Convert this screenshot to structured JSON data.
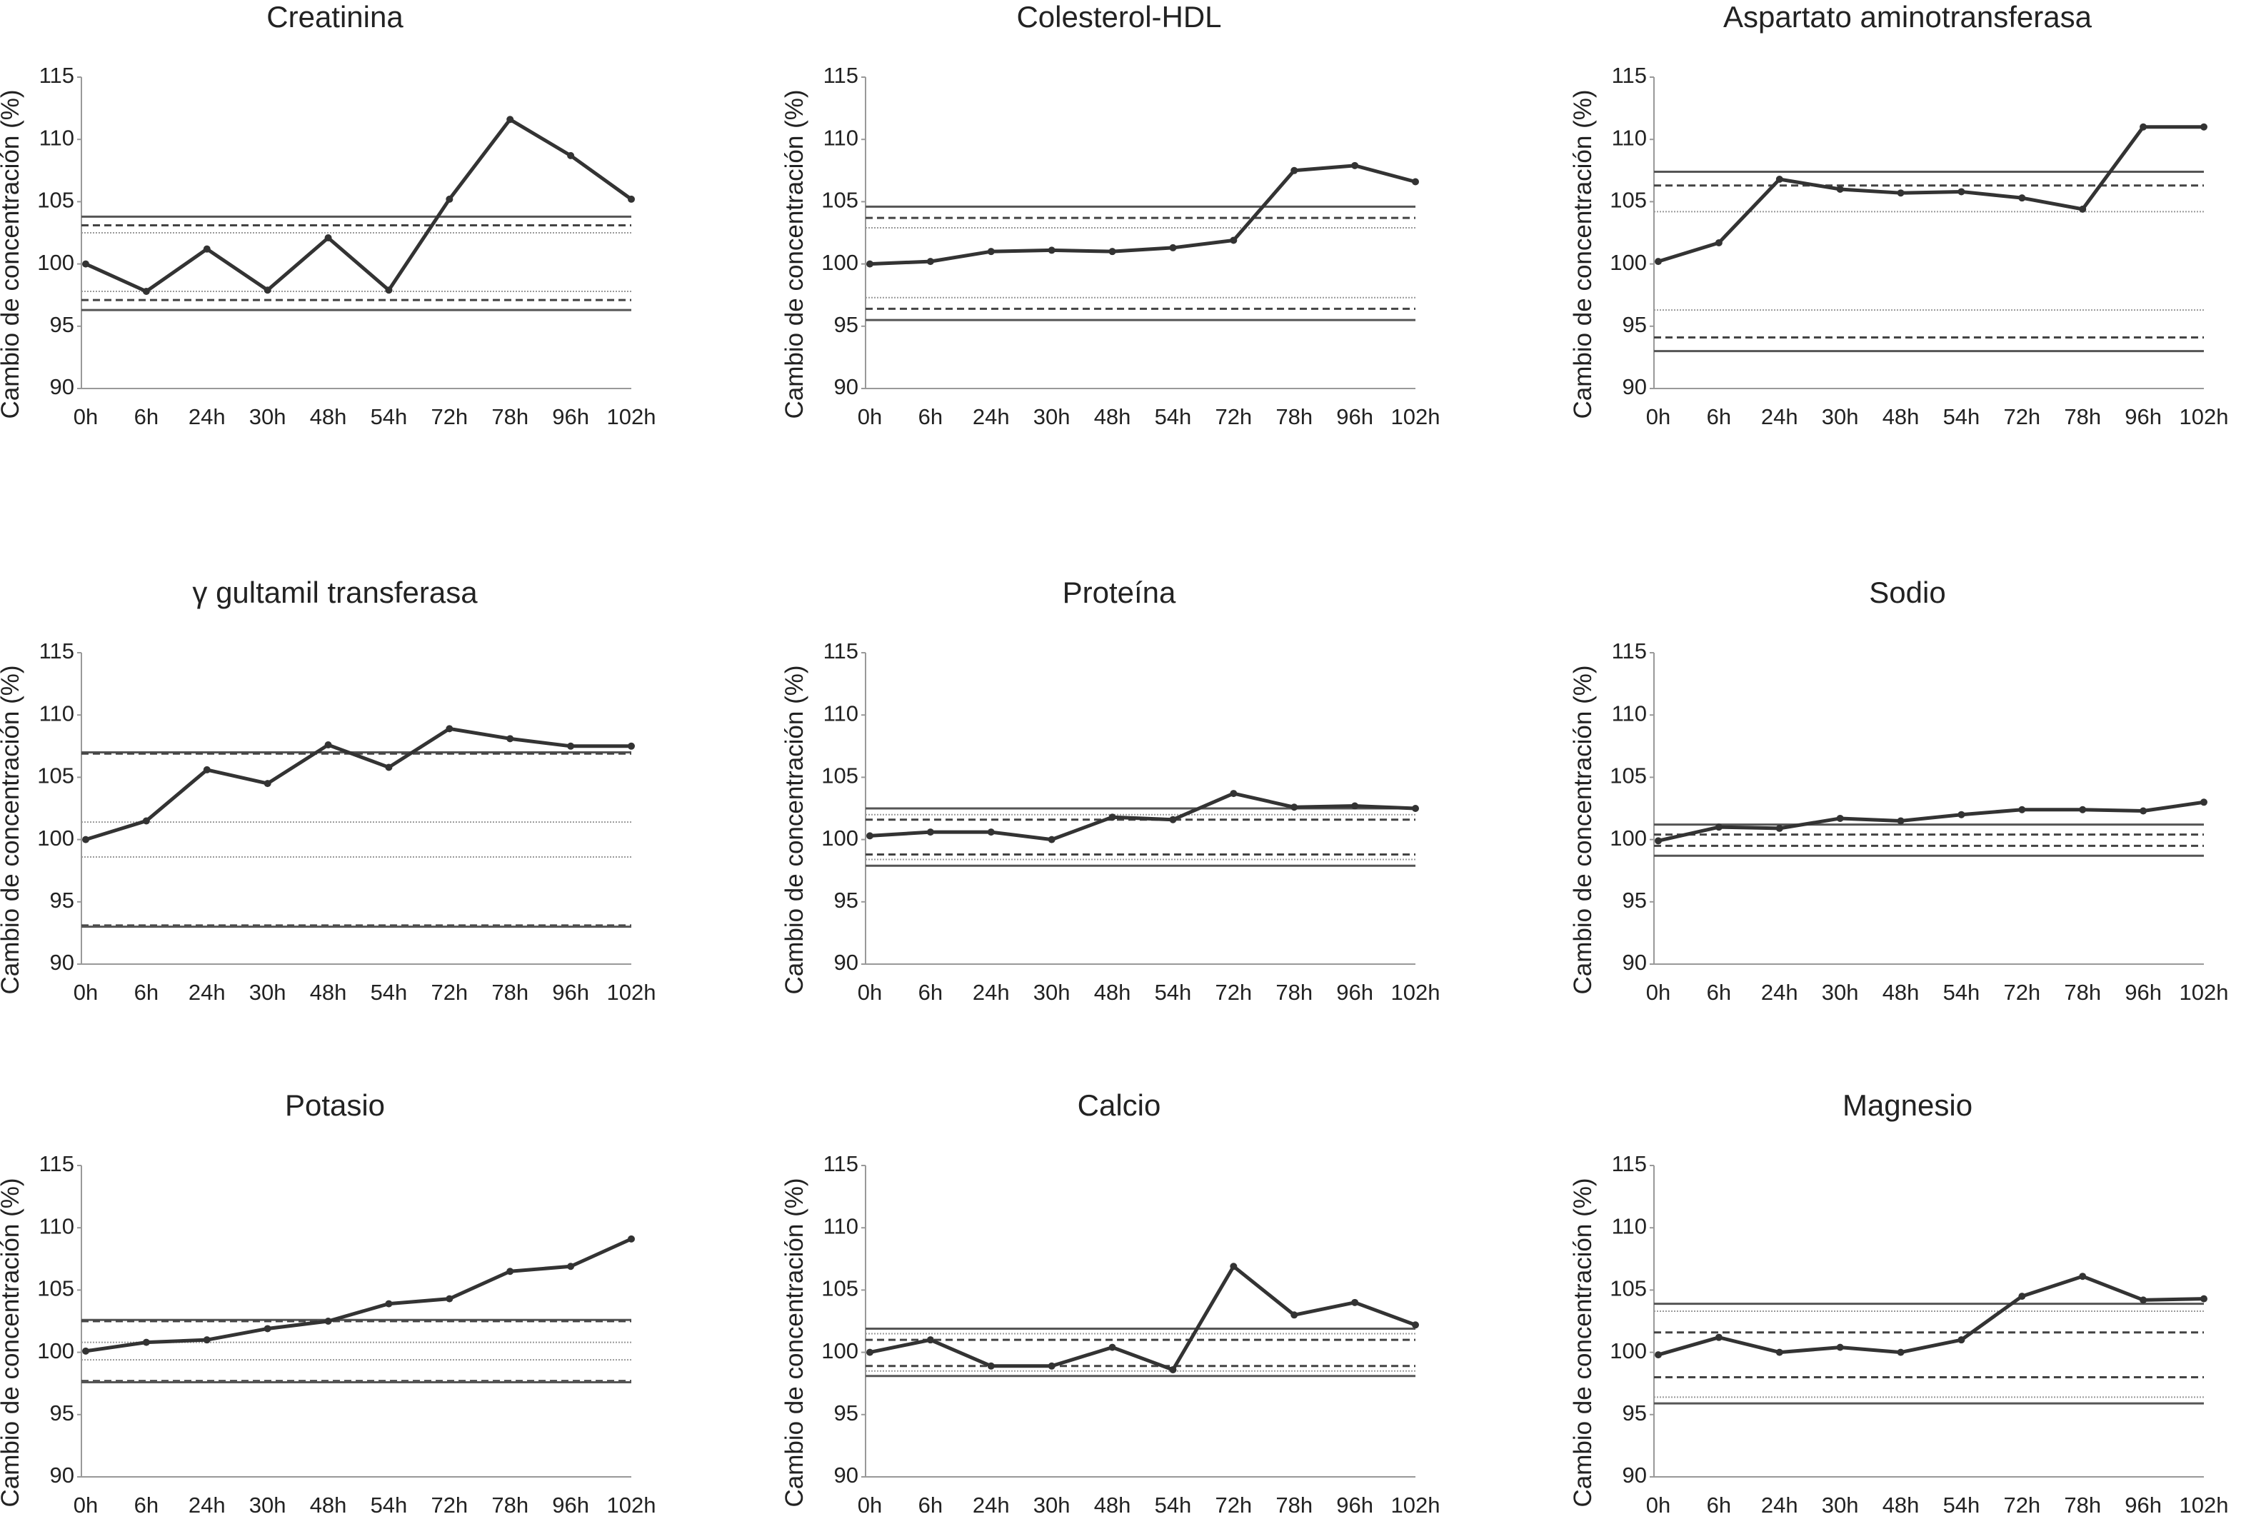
{
  "chart_data": [
    {
      "type": "line",
      "title": "Creatinina",
      "ylabel": "Cambio de concentración (%)",
      "categories": [
        "0h",
        "6h",
        "24h",
        "30h",
        "48h",
        "54h",
        "72h",
        "78h",
        "96h",
        "102h"
      ],
      "series": [
        {
          "color": "#333333",
          "values": [
            100,
            97.8,
            101.2,
            97.9,
            102.1,
            97.9,
            105.2,
            111.6,
            108.7,
            105.2
          ]
        }
      ],
      "ylim": [
        90,
        115
      ],
      "yticks": [
        90,
        95,
        100,
        105,
        110,
        115
      ],
      "reference_lines": [
        {
          "value": 103.8,
          "style": "solid"
        },
        {
          "value": 103.1,
          "style": "dashed"
        },
        {
          "value": 102.5,
          "style": "dotted"
        },
        {
          "value": 97.8,
          "style": "dotted"
        },
        {
          "value": 97.1,
          "style": "dashed"
        },
        {
          "value": 96.3,
          "style": "solid"
        }
      ]
    },
    {
      "type": "line",
      "title": "Colesterol-HDL",
      "ylabel": "Cambio de concentración (%)",
      "categories": [
        "0h",
        "6h",
        "24h",
        "30h",
        "48h",
        "54h",
        "72h",
        "78h",
        "96h",
        "102h"
      ],
      "series": [
        {
          "color": "#333333",
          "values": [
            100,
            100.2,
            101.0,
            101.1,
            101.0,
            101.3,
            101.9,
            107.5,
            107.9,
            106.6
          ]
        }
      ],
      "ylim": [
        90,
        115
      ],
      "yticks": [
        90,
        95,
        100,
        105,
        110,
        115
      ],
      "reference_lines": [
        {
          "value": 104.6,
          "style": "solid"
        },
        {
          "value": 103.7,
          "style": "dashed"
        },
        {
          "value": 102.9,
          "style": "dotted"
        },
        {
          "value": 97.3,
          "style": "dotted"
        },
        {
          "value": 96.4,
          "style": "dashed"
        },
        {
          "value": 95.5,
          "style": "solid"
        }
      ]
    },
    {
      "type": "line",
      "title": "Aspartato aminotransferasa",
      "ylabel": "Cambio de concentración (%)",
      "categories": [
        "0h",
        "6h",
        "24h",
        "30h",
        "48h",
        "54h",
        "72h",
        "78h",
        "96h",
        "102h"
      ],
      "series": [
        {
          "color": "#333333",
          "values": [
            100.2,
            101.7,
            106.8,
            106.0,
            105.7,
            105.8,
            105.3,
            104.4,
            111.0,
            111.0
          ]
        }
      ],
      "ylim": [
        90,
        115
      ],
      "yticks": [
        90,
        95,
        100,
        105,
        110,
        115
      ],
      "reference_lines": [
        {
          "value": 107.4,
          "style": "solid"
        },
        {
          "value": 106.3,
          "style": "dashed"
        },
        {
          "value": 104.2,
          "style": "dotted"
        },
        {
          "value": 96.3,
          "style": "dotted"
        },
        {
          "value": 94.1,
          "style": "dashed"
        },
        {
          "value": 93.0,
          "style": "solid"
        }
      ]
    },
    {
      "type": "line",
      "title": "γ gultamil transferasa",
      "ylabel": "Cambio de concentración (%)",
      "categories": [
        "0h",
        "6h",
        "24h",
        "30h",
        "48h",
        "54h",
        "72h",
        "78h",
        "96h",
        "102h"
      ],
      "series": [
        {
          "color": "#333333",
          "values": [
            100,
            101.5,
            105.6,
            104.5,
            107.6,
            105.8,
            108.9,
            108.1,
            107.5,
            107.5
          ]
        }
      ],
      "ylim": [
        90,
        115
      ],
      "yticks": [
        90,
        95,
        100,
        105,
        110,
        115
      ],
      "reference_lines": [
        {
          "value": 107.0,
          "style": "solid"
        },
        {
          "value": 106.9,
          "style": "dashed"
        },
        {
          "value": 101.4,
          "style": "dotted"
        },
        {
          "value": 98.6,
          "style": "dotted"
        },
        {
          "value": 93.1,
          "style": "dashed"
        },
        {
          "value": 93.0,
          "style": "solid"
        }
      ]
    },
    {
      "type": "line",
      "title": "Proteína",
      "ylabel": "Cambio de concentración (%)",
      "categories": [
        "0h",
        "6h",
        "24h",
        "30h",
        "48h",
        "54h",
        "72h",
        "78h",
        "96h",
        "102h"
      ],
      "series": [
        {
          "color": "#333333",
          "values": [
            100.3,
            100.6,
            100.6,
            100.0,
            101.8,
            101.6,
            103.7,
            102.6,
            102.7,
            102.5
          ]
        }
      ],
      "ylim": [
        90,
        115
      ],
      "yticks": [
        90,
        95,
        100,
        105,
        110,
        115
      ],
      "reference_lines": [
        {
          "value": 102.5,
          "style": "solid"
        },
        {
          "value": 102.0,
          "style": "dotted"
        },
        {
          "value": 101.6,
          "style": "dashed"
        },
        {
          "value": 98.8,
          "style": "dashed"
        },
        {
          "value": 98.4,
          "style": "dotted"
        },
        {
          "value": 97.9,
          "style": "solid"
        }
      ]
    },
    {
      "type": "line",
      "title": "Sodio",
      "ylabel": "Cambio de concentración (%)",
      "categories": [
        "0h",
        "6h",
        "24h",
        "30h",
        "48h",
        "54h",
        "72h",
        "78h",
        "96h",
        "102h"
      ],
      "series": [
        {
          "color": "#333333",
          "values": [
            99.9,
            101.0,
            100.9,
            101.7,
            101.5,
            102.0,
            102.4,
            102.4,
            102.3,
            103.0
          ]
        }
      ],
      "ylim": [
        90,
        115
      ],
      "yticks": [
        90,
        95,
        100,
        105,
        110,
        115
      ],
      "reference_lines": [
        {
          "value": 101.2,
          "style": "solid"
        },
        {
          "value": 100.4,
          "style": "dashed"
        },
        {
          "value": 99.5,
          "style": "dashed"
        },
        {
          "value": 98.7,
          "style": "solid"
        }
      ]
    },
    {
      "type": "line",
      "title": "Potasio",
      "ylabel": "Cambio de concentración (%)",
      "categories": [
        "0h",
        "6h",
        "24h",
        "30h",
        "48h",
        "54h",
        "72h",
        "78h",
        "96h",
        "102h"
      ],
      "series": [
        {
          "color": "#333333",
          "values": [
            100.1,
            100.8,
            101.0,
            101.9,
            102.5,
            103.9,
            104.3,
            106.5,
            106.9,
            109.1
          ]
        }
      ],
      "ylim": [
        90,
        115
      ],
      "yticks": [
        90,
        95,
        100,
        105,
        110,
        115
      ],
      "reference_lines": [
        {
          "value": 102.6,
          "style": "solid"
        },
        {
          "value": 102.5,
          "style": "dashed"
        },
        {
          "value": 100.8,
          "style": "dotted"
        },
        {
          "value": 99.4,
          "style": "dotted"
        },
        {
          "value": 97.7,
          "style": "dashed"
        },
        {
          "value": 97.6,
          "style": "solid"
        }
      ]
    },
    {
      "type": "line",
      "title": "Calcio",
      "ylabel": "Cambio de concentración (%)",
      "categories": [
        "0h",
        "6h",
        "24h",
        "30h",
        "48h",
        "54h",
        "72h",
        "78h",
        "96h",
        "102h"
      ],
      "series": [
        {
          "color": "#333333",
          "values": [
            100.0,
            101.0,
            98.9,
            98.9,
            100.4,
            98.6,
            106.9,
            103.0,
            104.0,
            102.2
          ]
        }
      ],
      "ylim": [
        90,
        115
      ],
      "yticks": [
        90,
        95,
        100,
        105,
        110,
        115
      ],
      "reference_lines": [
        {
          "value": 101.9,
          "style": "solid"
        },
        {
          "value": 101.5,
          "style": "dotted"
        },
        {
          "value": 101.0,
          "style": "dashed"
        },
        {
          "value": 98.9,
          "style": "dashed"
        },
        {
          "value": 98.5,
          "style": "dotted"
        },
        {
          "value": 98.1,
          "style": "solid"
        }
      ]
    },
    {
      "type": "line",
      "title": "Magnesio",
      "ylabel": "Cambio de concentración (%)",
      "categories": [
        "0h",
        "6h",
        "24h",
        "30h",
        "48h",
        "54h",
        "72h",
        "78h",
        "96h",
        "102h"
      ],
      "series": [
        {
          "color": "#333333",
          "values": [
            99.8,
            101.2,
            100.0,
            100.4,
            100.0,
            101.0,
            104.5,
            106.1,
            104.2,
            104.3
          ]
        }
      ],
      "ylim": [
        90,
        115
      ],
      "yticks": [
        90,
        95,
        100,
        105,
        110,
        115
      ],
      "reference_lines": [
        {
          "value": 103.9,
          "style": "solid"
        },
        {
          "value": 103.3,
          "style": "dotted"
        },
        {
          "value": 101.6,
          "style": "dashed"
        },
        {
          "value": 98.0,
          "style": "dashed"
        },
        {
          "value": 96.4,
          "style": "dotted"
        },
        {
          "value": 95.9,
          "style": "solid"
        }
      ]
    }
  ]
}
